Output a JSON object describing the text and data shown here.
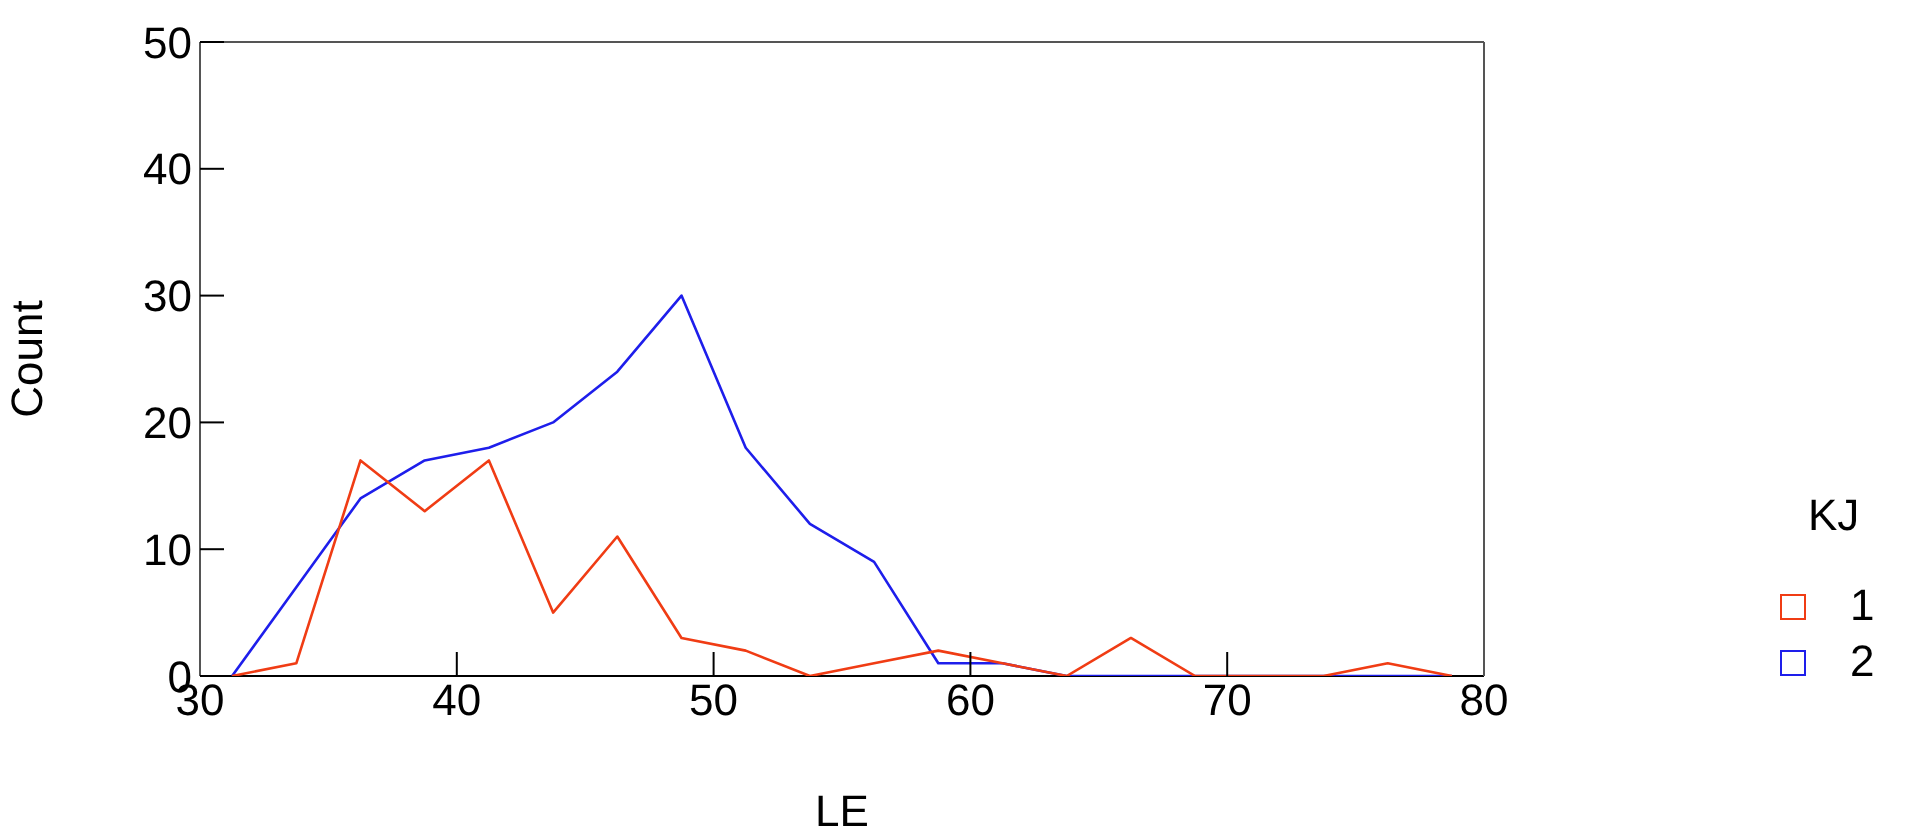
{
  "chart_data": {
    "type": "line",
    "xlabel": "LE",
    "ylabel": "Count",
    "legend_title": "KJ",
    "x": [
      31.25,
      33.75,
      36.25,
      38.75,
      41.25,
      43.75,
      46.25,
      48.75,
      51.25,
      53.75,
      56.25,
      58.75,
      61.25,
      63.75,
      66.25,
      68.75,
      71.25,
      73.75,
      76.25,
      78.75
    ],
    "series": [
      {
        "name": "1",
        "color": "#f03c14",
        "values": [
          0,
          1,
          17,
          13,
          17,
          5,
          11,
          3,
          2,
          0,
          1,
          2,
          1,
          0,
          3,
          0,
          0,
          0,
          1,
          0
        ]
      },
      {
        "name": "2",
        "color": "#1e1eeb",
        "values": [
          0,
          7,
          14,
          17,
          18,
          20,
          24,
          30,
          18,
          12,
          9,
          1,
          1,
          0,
          0,
          0,
          0,
          0,
          0,
          0
        ]
      }
    ],
    "xlim": [
      30,
      80
    ],
    "xticks": [
      30,
      40,
      50,
      60,
      70,
      80
    ],
    "ylim": [
      0,
      50
    ],
    "yticks": [
      0,
      10,
      20,
      30,
      40,
      50
    ],
    "grid": false,
    "legend": "right",
    "marker": "none",
    "line_style": "solid"
  }
}
